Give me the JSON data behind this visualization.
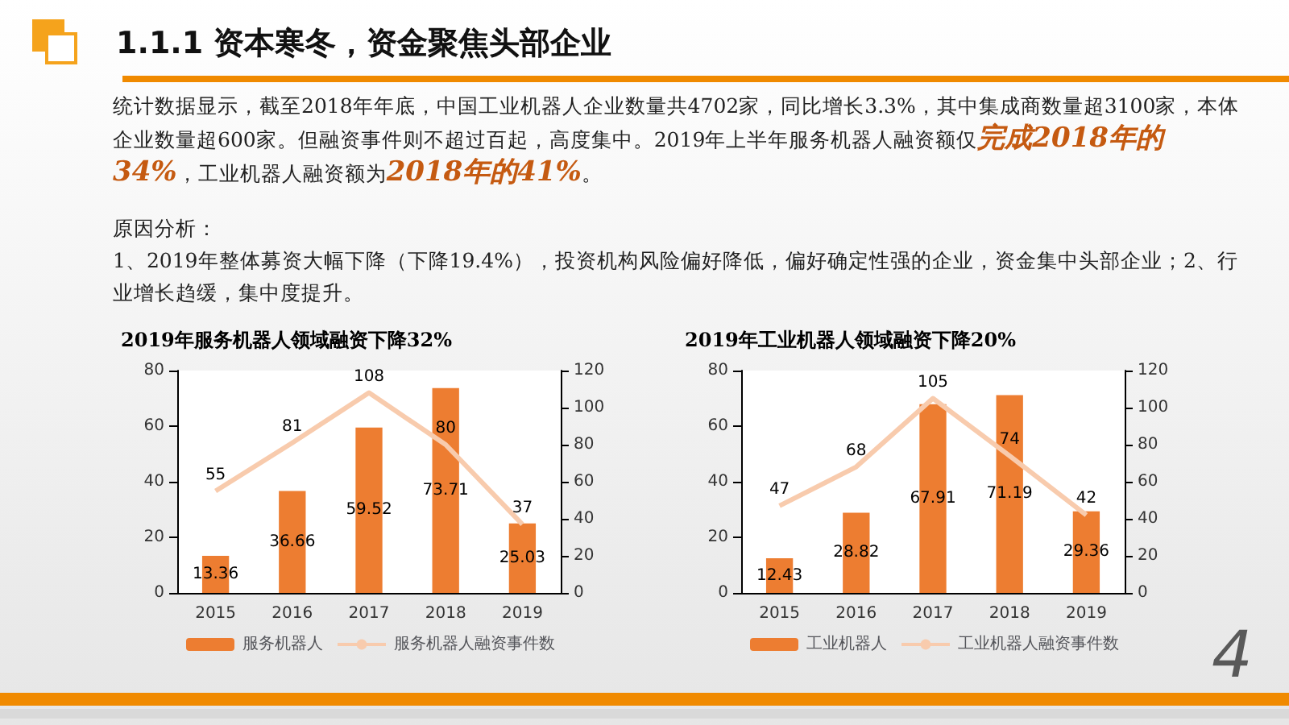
{
  "chart_data": [
    {
      "type": "other",
      "title": "1.1.1 资本寒冬，资金聚焦头部企业",
      "annotations": [
        "统计数据显示，截至2018年年底，中国工业机器人企业数量共4702家，同比增长3.3%，其中集成商数量超3100家，本体企业数量超600家。但融资事件则不超过百起，高度集中。2019年上半年服务机器人融资额仅",
        "完成2018年的34%",
        "，工业机器人融资额为",
        "2018年的41%",
        "。",
        "原因分析：",
        "1、2019年整体募资大幅下降（下降19.4%），投资机构风险偏好降低，偏好确定性强的企业，资金集中头部企业；2、行业增长趋缓，集中度提升。",
        "4"
      ]
    },
    {
      "type": "bar",
      "title": "2019年服务机器人领域融资下降32%",
      "categories": [
        "2015",
        "2016",
        "2017",
        "2018",
        "2019"
      ],
      "series": [
        {
          "name": "服务机器人",
          "color": "#ed7d31",
          "values": [
            13.36,
            36.66,
            59.52,
            73.71,
            25.03
          ]
        },
        {
          "name": "服务机器人融资事件数",
          "type": "line",
          "axis": "y2",
          "color": "#f8cbad",
          "values": [
            55,
            81,
            108,
            80,
            37
          ]
        }
      ],
      "ylim": [
        0,
        80
      ],
      "yticks": [
        0,
        20,
        40,
        60,
        80
      ],
      "y2lim": [
        0,
        120
      ],
      "y2ticks": [
        0,
        20,
        40,
        60,
        80,
        100,
        120
      ],
      "data_labels": true,
      "legend": "bottom",
      "grid": false
    },
    {
      "type": "bar",
      "title": "2019年工业机器人领域融资下降20%",
      "categories": [
        "2015",
        "2016",
        "2017",
        "2018",
        "2019"
      ],
      "series": [
        {
          "name": "工业机器人",
          "color": "#ed7d31",
          "values": [
            12.43,
            28.82,
            67.91,
            71.19,
            29.36
          ]
        },
        {
          "name": "工业机器人融资事件数",
          "type": "line",
          "axis": "y2",
          "color": "#f8cbad",
          "values": [
            47,
            68,
            105,
            74,
            42
          ]
        }
      ],
      "ylim": [
        0,
        80
      ],
      "yticks": [
        0,
        20,
        40,
        60,
        80
      ],
      "y2lim": [
        0,
        120
      ],
      "y2ticks": [
        0,
        20,
        40,
        60,
        80,
        100,
        120
      ],
      "data_labels": true,
      "legend": "bottom",
      "grid": false
    }
  ]
}
